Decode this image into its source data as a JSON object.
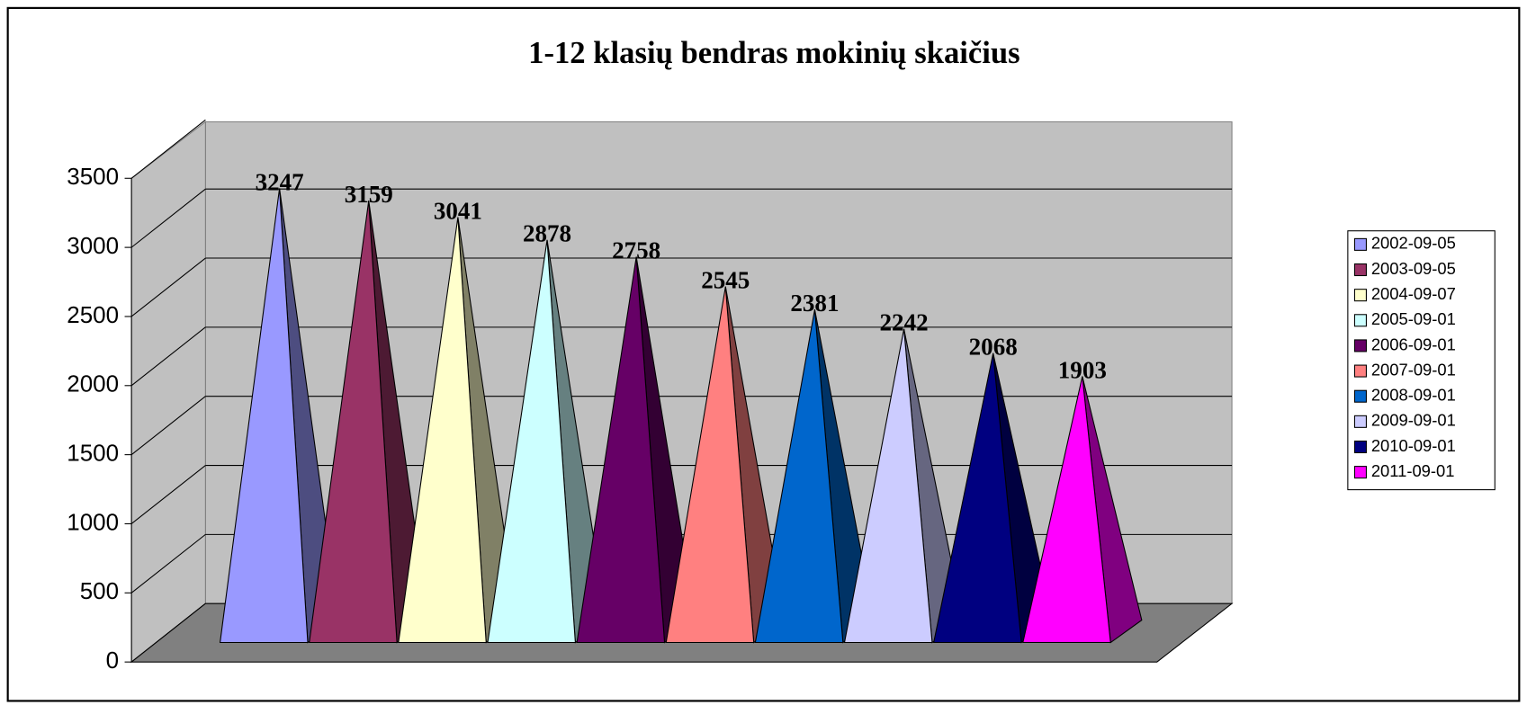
{
  "chart_data": {
    "type": "pyramid",
    "title": "1-12 klasių bendras mokinių skaičius",
    "series": [
      {
        "name": "2002-09-05",
        "color": "#9999ff",
        "values": [
          3247
        ]
      },
      {
        "name": "2003-09-05",
        "color": "#993366",
        "values": [
          3159
        ]
      },
      {
        "name": "2004-09-07",
        "color": "#ffffcc",
        "values": [
          3041
        ]
      },
      {
        "name": "2005-09-01",
        "color": "#ccffff",
        "values": [
          2878
        ]
      },
      {
        "name": "2006-09-01",
        "color": "#660066",
        "values": [
          2758
        ]
      },
      {
        "name": "2007-09-01",
        "color": "#ff8080",
        "values": [
          2545
        ]
      },
      {
        "name": "2008-09-01",
        "color": "#0066cc",
        "values": [
          2381
        ]
      },
      {
        "name": "2009-09-01",
        "color": "#ccccff",
        "values": [
          2242
        ]
      },
      {
        "name": "2010-09-01",
        "color": "#000080",
        "values": [
          2068
        ]
      },
      {
        "name": "2011-09-01",
        "color": "#ff00ff",
        "values": [
          1903
        ]
      }
    ],
    "ylim": [
      0,
      3500
    ],
    "yticks": [
      0,
      500,
      1000,
      1500,
      2000,
      2500,
      3000,
      3500
    ],
    "grid": true,
    "legend": "right"
  }
}
